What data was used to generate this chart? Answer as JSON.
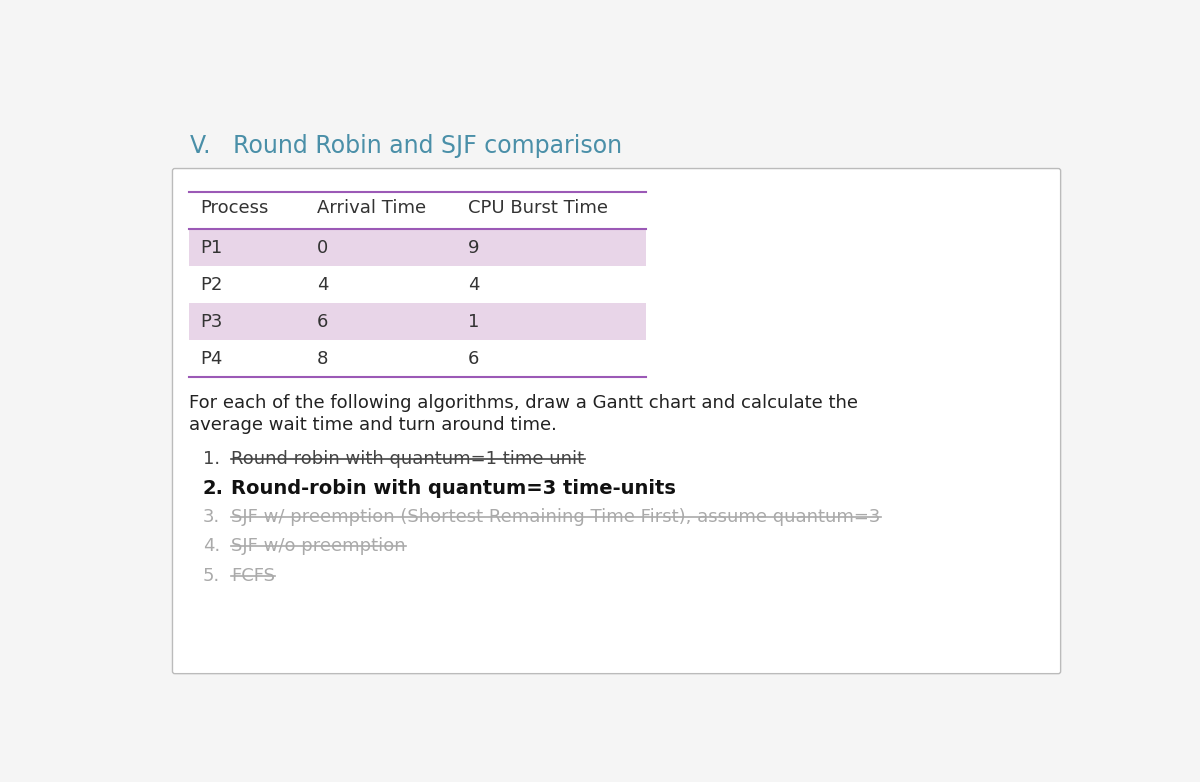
{
  "title": "V.   Round Robin and SJF comparison",
  "title_color": "#4a8fa8",
  "title_fontsize": 17,
  "bg_color": "#f5f5f5",
  "card_bg": "#ffffff",
  "card_border": "#bbbbbb",
  "table_headers": [
    "Process",
    "Arrival Time",
    "CPU Burst Time"
  ],
  "table_data": [
    [
      "P1",
      "0",
      "9"
    ],
    [
      "P2",
      "4",
      "4"
    ],
    [
      "P3",
      "6",
      "1"
    ],
    [
      "P4",
      "8",
      "6"
    ]
  ],
  "row_colors": [
    "#e8d5e8",
    "#ffffff",
    "#e8d5e8",
    "#ffffff"
  ],
  "header_line_color": "#9b59b6",
  "intro_text_line1": "For each of the following algorithms, draw a Gantt chart and calculate the",
  "intro_text_line2": "average wait time and turn around time.",
  "items": [
    {
      "number": "1.",
      "text": "Round robin with quantum=1 time unit",
      "style": "strikethrough",
      "bold": false,
      "color": "#444444"
    },
    {
      "number": "2.",
      "text": "Round-robin with quantum=3 time-units",
      "style": "bold",
      "bold": true,
      "color": "#111111"
    },
    {
      "number": "3.",
      "text": "SJF w/ preemption (Shortest Remaining Time First), assume quantum=3",
      "style": "strikethrough",
      "bold": false,
      "color": "#aaaaaa"
    },
    {
      "number": "4.",
      "text": "SJF w/o preemption",
      "style": "strikethrough",
      "bold": false,
      "color": "#aaaaaa"
    },
    {
      "number": "5.",
      "text": "FCFS",
      "style": "strikethrough",
      "bold": false,
      "color": "#aaaaaa"
    }
  ],
  "normal_text_color": "#333333",
  "intro_text_color": "#222222"
}
